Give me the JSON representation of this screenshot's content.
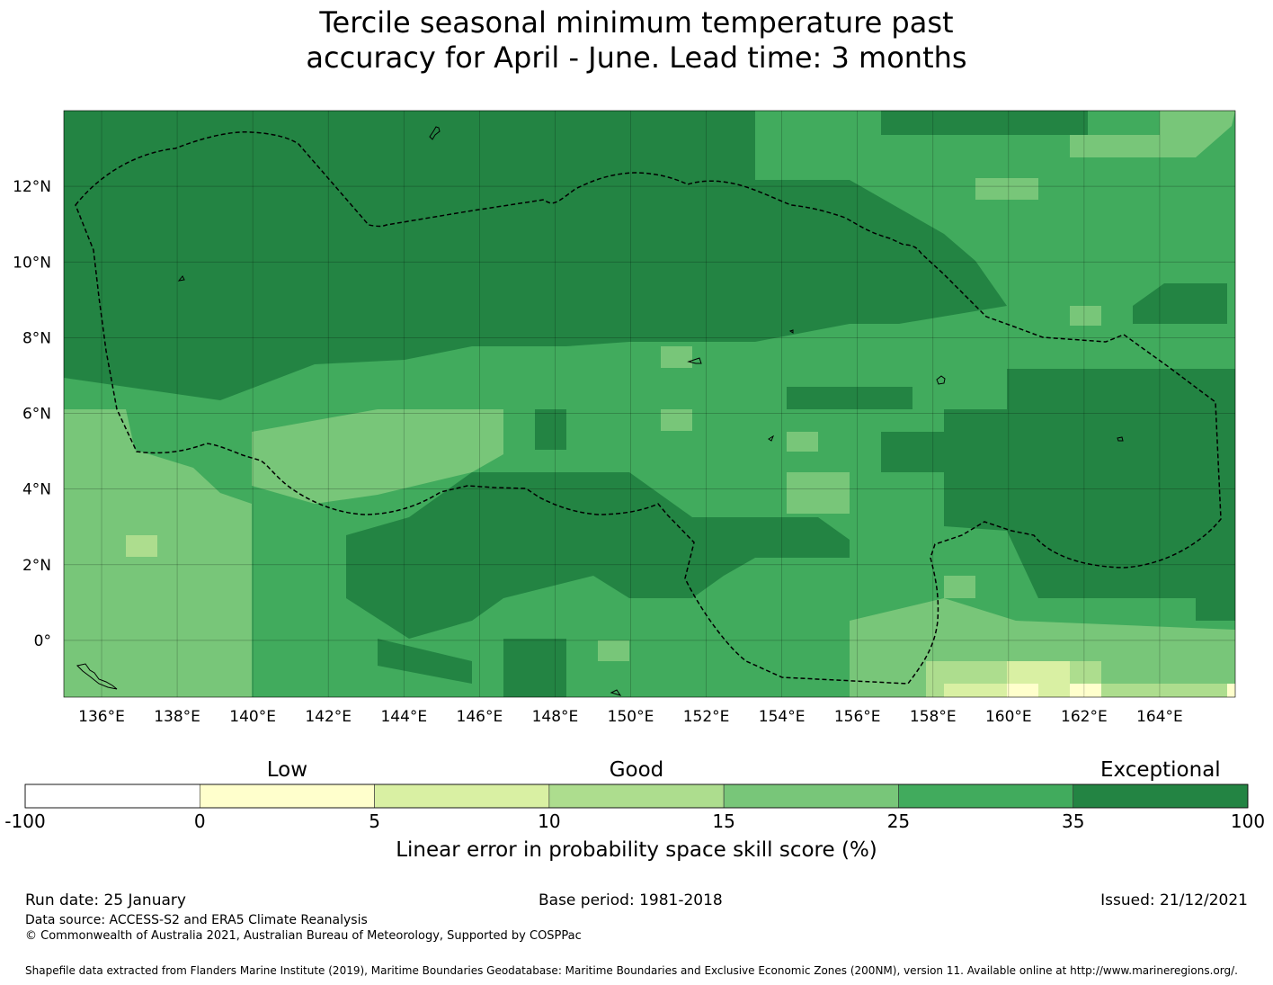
{
  "title": {
    "line1": "Tercile seasonal minimum temperature past",
    "line2": "accuracy for April - June. Lead time: 3 months"
  },
  "map": {
    "lon_labels": [
      "136°E",
      "138°E",
      "140°E",
      "142°E",
      "144°E",
      "146°E",
      "148°E",
      "150°E",
      "152°E",
      "154°E",
      "156°E",
      "158°E",
      "160°E",
      "162°E",
      "164°E"
    ],
    "lat_labels": [
      "12°N",
      "10°N",
      "8°N",
      "6°N",
      "4°N",
      "2°N",
      "0°"
    ],
    "lon_range": [
      135.0,
      166.0
    ],
    "lat_range": [
      -1.5,
      14.0
    ],
    "boundary_style": "dashed-black"
  },
  "colorbar": {
    "categories": [
      {
        "name": "Low",
        "under_bin": 1
      },
      {
        "name": "Good",
        "under_bin": 3
      },
      {
        "name": "Exceptional",
        "under_bin": 6
      }
    ],
    "ticks": [
      "-100",
      "0",
      "5",
      "10",
      "15",
      "25",
      "35",
      "100"
    ],
    "colors": [
      "#ffffff",
      "#ffffcc",
      "#d9f0a3",
      "#addd8e",
      "#78c679",
      "#41ab5d",
      "#238443"
    ],
    "title": "Linear error in probability space skill score (%)"
  },
  "footer": {
    "run_date": "Run date: 25 January",
    "base_period": "Base period: 1981-2018",
    "issued": "Issued: 21/12/2021",
    "data_source": "Data source: ACCESS-S2 and ERA5 Climate Reanalysis",
    "copyright": "© Commonwealth of Australia 2021, Australian Bureau of Meteorology, Supported by COSPPac",
    "shapefile": "Shapefile data extracted from Flanders Marine Institute (2019), Maritime Boundaries Geodatabase: Maritime Boundaries and Exclusive Economic Zones (200NM), version 11. Available online at http://www.marineregions.org/."
  }
}
